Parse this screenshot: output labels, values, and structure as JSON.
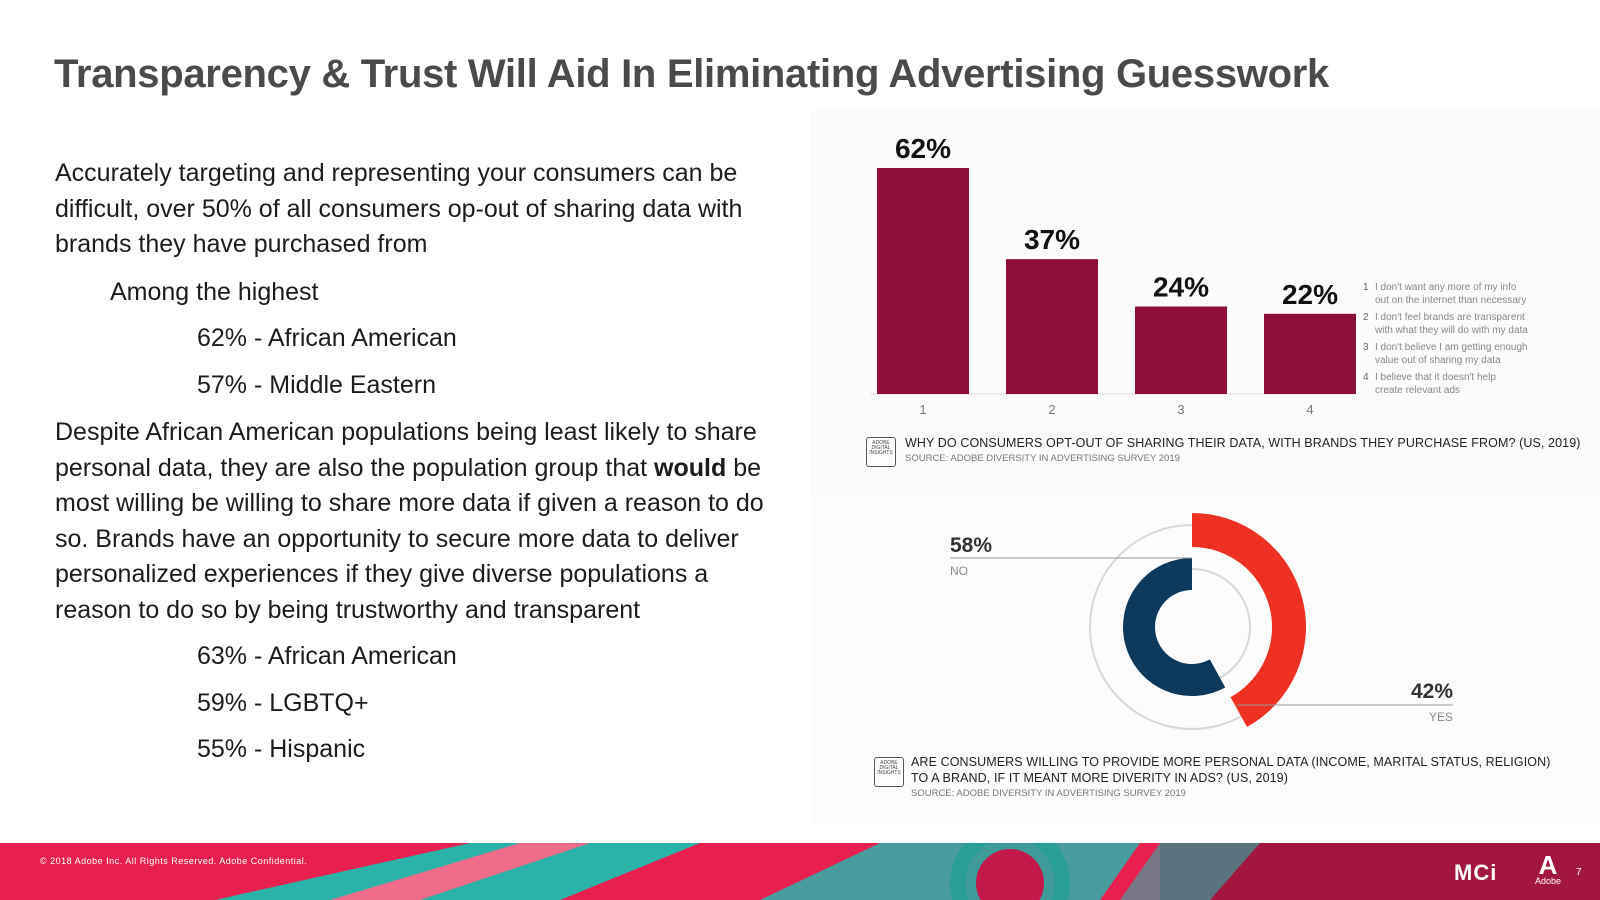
{
  "title": "Transparency & Trust Will Aid In Eliminating Advertising Guesswork",
  "left": {
    "intro": "Accurately targeting and representing your consumers can be difficult, over 50% of all consumers op-out of sharing data with brands they have purchased from",
    "highest_label": "Among the highest",
    "highest_items": [
      "62% - African American",
      "57% - Middle Eastern"
    ],
    "para2_pre": "Despite African American populations being least likely to share personal data, they are also the population group that ",
    "para2_bold": "would",
    "para2_post": " be most willing be willing to share more data if given a reason to do so. Brands have an opportunity to secure more data to deliver personalized experiences if they give diverse populations a reason to do so by being trustworthy and transparent",
    "willing_items": [
      "63% - African American",
      "59% - LGBTQ+",
      "55% - Hispanic"
    ]
  },
  "chart_data": [
    {
      "type": "bar",
      "title": "WHY DO CONSUMERS OPT-OUT OF SHARING THEIR DATA, WITH BRANDS THEY PURCHASE FROM? (US, 2019)",
      "source": "SOURCE: ADOBE DIVERSITY IN ADVERTISING SURVEY 2019",
      "categories": [
        "1",
        "2",
        "3",
        "4"
      ],
      "values": [
        62,
        37,
        24,
        22
      ],
      "labels": [
        "62%",
        "37%",
        "24%",
        "22%"
      ],
      "ylim": [
        0,
        65
      ],
      "color": "#8e0f3c",
      "legend": [
        {
          "num": "1",
          "lines": [
            "I don't want any more of my info",
            "out on the internet than necessary"
          ]
        },
        {
          "num": "2",
          "lines": [
            "I don't feel brands are transparent",
            "with what they will do with my data"
          ]
        },
        {
          "num": "3",
          "lines": [
            "I don't believe I am getting enough",
            "value out of sharing my data"
          ]
        },
        {
          "num": "4",
          "lines": [
            "I believe that it doesn't help",
            "create relevant ads"
          ]
        }
      ]
    },
    {
      "type": "pie",
      "title_line1": "ARE CONSUMERS WILLING TO PROVIDE MORE PERSONAL DATA (INCOME, MARITAL STATUS, RELIGION)",
      "title_line2": "TO A BRAND, IF IT MEANT MORE DIVERITY IN ADS? (US, 2019)",
      "source": "SOURCE: ADOBE DIVERSITY IN ADVERTISING SURVEY 2019",
      "slices": [
        {
          "name": "NO",
          "value": 58,
          "label": "58%",
          "color": "#0d3a5c"
        },
        {
          "name": "YES",
          "value": 42,
          "label": "42%",
          "color": "#ef3124"
        }
      ]
    }
  ],
  "icon_text": [
    "ADOBE",
    "DIGITAL",
    "INSIGHTS"
  ],
  "footer": {
    "copyright": "© 2018 Adobe Inc. All Rights Reserved. Adobe Confidential.",
    "page_number": "7",
    "brand_mark": "MCi",
    "adobe_word": "Adobe",
    "adobe_glyph": "A"
  },
  "colors": {
    "accent": "#e8204f",
    "teal": "#2bb3aa",
    "bar": "#8e0f3c",
    "navy": "#0d3a5c",
    "red": "#ef3124"
  }
}
